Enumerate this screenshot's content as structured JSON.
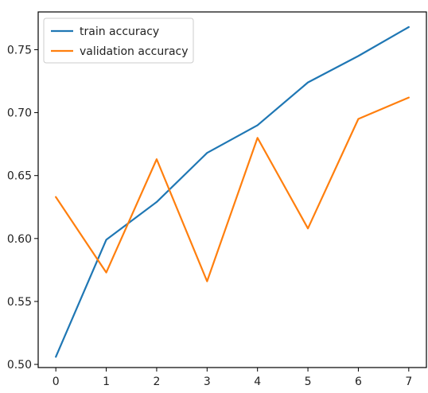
{
  "chart_data": {
    "type": "line",
    "title": "",
    "xlabel": "",
    "ylabel": "",
    "x": [
      0,
      1,
      2,
      3,
      4,
      5,
      6,
      7
    ],
    "xlim": [
      -0.35,
      7.35
    ],
    "ylim": [
      0.4975,
      0.78
    ],
    "x_ticks": [
      0,
      1,
      2,
      3,
      4,
      5,
      6,
      7
    ],
    "x_tick_labels": [
      "0",
      "1",
      "2",
      "3",
      "4",
      "5",
      "6",
      "7"
    ],
    "y_ticks": [
      0.5,
      0.55,
      0.6,
      0.65,
      0.7,
      0.75
    ],
    "y_tick_labels": [
      "0.50",
      "0.55",
      "0.60",
      "0.65",
      "0.70",
      "0.75"
    ],
    "grid": false,
    "legend_position": "top-left",
    "series": [
      {
        "name": "train accuracy",
        "color": "#1f77b4",
        "values": [
          0.506,
          0.599,
          0.629,
          0.668,
          0.69,
          0.724,
          0.745,
          0.768
        ]
      },
      {
        "name": "validation accuracy",
        "color": "#ff7f0e",
        "values": [
          0.633,
          0.573,
          0.663,
          0.566,
          0.68,
          0.608,
          0.695,
          0.712
        ]
      }
    ]
  }
}
